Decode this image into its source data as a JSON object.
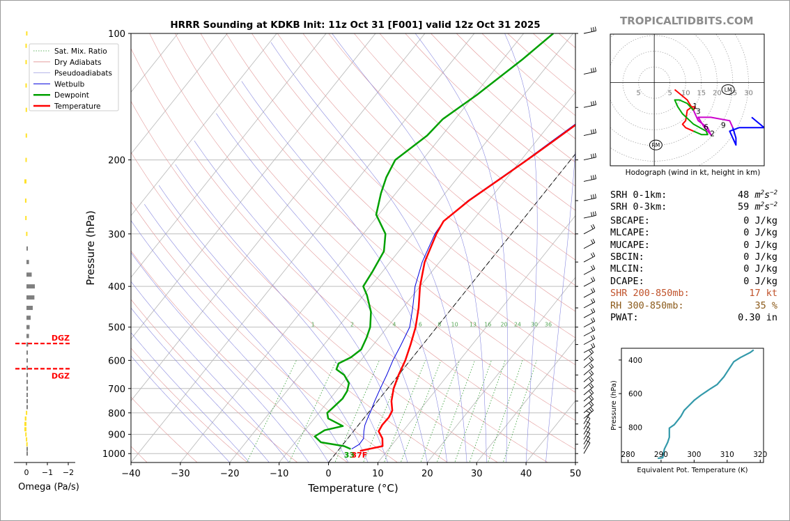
{
  "brand": "TROPICALTIDBITS.COM",
  "main": {
    "title": "HRRR Sounding at KDKB Init: 11z Oct 31 [F001] valid 12z Oct 31 2025",
    "xlabel": "Temperature (°C)",
    "ylabel": "Pressure (hPa)",
    "sfc_dewpoint_label": "33",
    "sfc_temp_label": "37F",
    "legend": [
      "Sat. Mix. Ratio",
      "Dry Adiabats",
      "Pseudoadiabats",
      "Wetbulb",
      "Dewpoint",
      "Temperature"
    ],
    "mixing_ratio_labels": [
      "1",
      "2",
      "4",
      "6",
      "8",
      "10",
      "13",
      "16",
      "20",
      "24",
      "30",
      "36"
    ]
  },
  "omega": {
    "xlabel": "Omega (Pa/s)",
    "dgz_label": "DGZ",
    "ticks": [
      "0",
      "−1",
      "−2"
    ]
  },
  "hodograph": {
    "caption": "Hodograph (wind in kt, height in km)",
    "ring_labels": [
      "5",
      "5",
      "10",
      "15",
      "20",
      "25",
      "30"
    ],
    "storm_markers": [
      "LM",
      "RM"
    ],
    "height_labels": [
      "1",
      "3",
      "6",
      "2",
      "9"
    ]
  },
  "theta_e": {
    "xlabel": "Equivalent Pot. Temperature (K)",
    "ylabel": "Pressure (hPa)"
  },
  "indices": [
    {
      "label": "SRH 0-1km:",
      "value": "48",
      "unit": "m2s-2",
      "color": "#000000"
    },
    {
      "label": "SRH 0-3km:",
      "value": "59",
      "unit": "m2s-2",
      "color": "#000000"
    },
    {
      "label": "SBCAPE:",
      "value": "0 J/kg",
      "unit": "",
      "color": "#000000"
    },
    {
      "label": "MLCAPE:",
      "value": "0 J/kg",
      "unit": "",
      "color": "#000000"
    },
    {
      "label": "MUCAPE:",
      "value": "0 J/kg",
      "unit": "",
      "color": "#000000"
    },
    {
      "label": "SBCIN:",
      "value": "0 J/kg",
      "unit": "",
      "color": "#000000"
    },
    {
      "label": "MLCIN:",
      "value": "0 J/kg",
      "unit": "",
      "color": "#000000"
    },
    {
      "label": "DCAPE:",
      "value": "0 J/kg",
      "unit": "",
      "color": "#000000"
    },
    {
      "label": "SHR 200-850mb:",
      "value": "17 kt",
      "unit": "",
      "color": "#c0522a"
    },
    {
      "label": "RH 300-850mb:",
      "value": "35 %",
      "unit": "",
      "color": "#8b5a1a"
    },
    {
      "label": "PWAT:",
      "value": "0.30 in",
      "unit": "",
      "color": "#000000"
    }
  ],
  "chart_data": [
    {
      "type": "line",
      "title": "HRRR Sounding at KDKB Init: 11z Oct 31 [F001] valid 12z Oct 31 2025",
      "xlabel": "Temperature (°C)",
      "ylabel": "Pressure (hPa)",
      "xlim": [
        -40,
        50
      ],
      "ylim": [
        1050,
        100
      ],
      "y_scale": "log",
      "x_ticks": [
        -40,
        -30,
        -20,
        -10,
        0,
        10,
        20,
        30,
        40,
        50
      ],
      "y_ticks": [
        100,
        200,
        300,
        400,
        500,
        600,
        700,
        800,
        900,
        1000
      ],
      "legend_position": "top-left",
      "series": [
        {
          "name": "Temperature",
          "color": "#ff0000",
          "points": [
            [
              4.5,
              985
            ],
            [
              8.3,
              960
            ],
            [
              7,
              920
            ],
            [
              5.1,
              885
            ],
            [
              4.8,
              855
            ],
            [
              4.9,
              820
            ],
            [
              4.5,
              790
            ],
            [
              2.8,
              750
            ],
            [
              1.2,
              700
            ],
            [
              0,
              650
            ],
            [
              -1,
              600
            ],
            [
              -2.5,
              550
            ],
            [
              -4.3,
              500
            ],
            [
              -6.8,
              450
            ],
            [
              -10,
              400
            ],
            [
              -13,
              350
            ],
            [
              -15.2,
              300
            ],
            [
              -15.8,
              280
            ],
            [
              -14,
              250
            ],
            [
              -11,
              220
            ],
            [
              -8.8,
              200
            ],
            [
              -6.5,
              180
            ],
            [
              -4,
              160
            ],
            [
              -1.5,
              140
            ],
            [
              1,
              120
            ],
            [
              3.2,
              105
            ],
            [
              4,
              100
            ]
          ]
        },
        {
          "name": "Dewpoint",
          "color": "#00a000",
          "points": [
            [
              2.3,
              975
            ],
            [
              0.5,
              960
            ],
            [
              -4.8,
              940
            ],
            [
              -7,
              910
            ],
            [
              -6,
              880
            ],
            [
              -3,
              860
            ],
            [
              -7.2,
              825
            ],
            [
              -8.3,
              800
            ],
            [
              -8,
              780
            ],
            [
              -7.5,
              740
            ],
            [
              -7.8,
              710
            ],
            [
              -8.7,
              680
            ],
            [
              -11,
              650
            ],
            [
              -13.5,
              630
            ],
            [
              -14,
              610
            ],
            [
              -12.5,
              590
            ],
            [
              -11.7,
              565
            ],
            [
              -12.5,
              530
            ],
            [
              -13.5,
              500
            ],
            [
              -15.8,
              460
            ],
            [
              -19.3,
              420
            ],
            [
              -21.5,
              400
            ],
            [
              -22,
              370
            ],
            [
              -23,
              330
            ],
            [
              -25.5,
              300
            ],
            [
              -30.5,
              270
            ],
            [
              -33,
              240
            ],
            [
              -34.5,
              220
            ],
            [
              -35.5,
              200
            ],
            [
              -33,
              175
            ],
            [
              -32.5,
              160
            ],
            [
              -29.5,
              140
            ],
            [
              -26,
              115
            ],
            [
              -24,
              100
            ]
          ]
        },
        {
          "name": "Wetbulb",
          "color": "#0000dd",
          "points": [
            [
              2.5,
              975
            ],
            [
              3.3,
              950
            ],
            [
              3.2,
              920
            ],
            [
              2.1,
              885
            ],
            [
              1.3,
              855
            ],
            [
              0.6,
              815
            ],
            [
              0.2,
              790
            ],
            [
              -0.6,
              750
            ],
            [
              -1.5,
              700
            ],
            [
              -2.4,
              650
            ],
            [
              -3.5,
              600
            ],
            [
              -4.3,
              555
            ],
            [
              -5.5,
              500
            ],
            [
              -8,
              450
            ],
            [
              -11,
              400
            ],
            [
              -13.5,
              350
            ],
            [
              -15.5,
              300
            ],
            [
              -15.8,
              280
            ],
            [
              -14.2,
              250
            ],
            [
              -11.2,
              220
            ],
            [
              -9,
              200
            ],
            [
              -6.8,
              180
            ],
            [
              -4.3,
              160
            ],
            [
              -1.8,
              140
            ],
            [
              0.5,
              120
            ],
            [
              2.7,
              105
            ],
            [
              3.5,
              100
            ]
          ]
        }
      ]
    },
    {
      "type": "bar",
      "title": "",
      "xlabel": "Omega (Pa/s)",
      "xlim": [
        0.3,
        -2
      ],
      "x_ticks": [
        0,
        -1,
        -2
      ],
      "dgz_layers_hPa": [
        547,
        628
      ],
      "levels_hPa": [
        100,
        107,
        117,
        133,
        152,
        175,
        200,
        225,
        250,
        275,
        300,
        325,
        350,
        375,
        400,
        425,
        450,
        475,
        500,
        525,
        550,
        575,
        600,
        625,
        650,
        675,
        700,
        725,
        750,
        775,
        800,
        825,
        850,
        875,
        900,
        925,
        950,
        975,
        1000
      ],
      "omega_Pa_s": [
        0.02,
        0.05,
        0.05,
        0.05,
        0.04,
        0.04,
        0.05,
        0.1,
        0.07,
        0.06,
        0.02,
        -0.02,
        -0.12,
        -0.25,
        -0.4,
        -0.38,
        -0.3,
        -0.2,
        -0.15,
        -0.12,
        -0.08,
        -0.04,
        -0.02,
        -0.03,
        -0.04,
        -0.05,
        -0.07,
        -0.06,
        -0.04,
        -0.02,
        0.03,
        0.08,
        0.1,
        0.1,
        0.06,
        0.03,
        0.01,
        -0.02,
        -0.01
      ]
    },
    {
      "type": "line",
      "title": "Hodograph (wind in kt, height in km)",
      "xlim": [
        -14,
        35
      ],
      "ylim": [
        -24,
        14
      ],
      "rings_kt": [
        5,
        10,
        15,
        20,
        25,
        30
      ],
      "storm_motion_kt": {
        "LM": [
          23.5,
          -2
        ],
        "RM": [
          0.5,
          -18
        ]
      },
      "series": [
        {
          "name": "0-1 km",
          "color": "#ff0000",
          "points": [
            [
              6.5,
              -2
            ],
            [
              10.5,
              -5
            ],
            [
              12.5,
              -8
            ],
            [
              13,
              -7
            ],
            [
              12,
              -7
            ],
            [
              10.5,
              -8
            ],
            [
              10,
              -11
            ],
            [
              9,
              -12
            ],
            [
              10,
              -13
            ],
            [
              12.5,
              -14
            ]
          ]
        },
        {
          "name": "1-3 km",
          "color": "#00aa00",
          "points": [
            [
              12.5,
              -14
            ],
            [
              15,
              -15
            ],
            [
              17,
              -15
            ],
            [
              16.5,
              -14
            ],
            [
              12.5,
              -12
            ],
            [
              9,
              -9
            ],
            [
              7.5,
              -7
            ],
            [
              6.5,
              -5
            ],
            [
              8,
              -5
            ],
            [
              10.5,
              -6
            ],
            [
              12.5,
              -8
            ]
          ]
        },
        {
          "name": "3-6 km",
          "color": "#cc00cc",
          "points": [
            [
              12.5,
              -8
            ],
            [
              14,
              -11
            ],
            [
              17,
              -13
            ],
            [
              18,
              -15
            ],
            [
              16,
              -13
            ],
            [
              14,
              -10
            ],
            [
              18,
              -10
            ],
            [
              24,
              -11
            ],
            [
              25,
              -13
            ]
          ]
        },
        {
          "name": "6-9 km",
          "color": "#0000ff",
          "points": [
            [
              25,
              -13
            ],
            [
              26,
              -16
            ],
            [
              26,
              -18
            ],
            [
              24,
              -14
            ],
            [
              27,
              -13
            ],
            [
              35,
              -13
            ],
            [
              31,
              -10
            ]
          ]
        }
      ]
    },
    {
      "type": "line",
      "title": "",
      "xlabel": "Equivalent Pot. Temperature (K)",
      "ylabel": "Pressure (hPa)",
      "xlim": [
        278,
        321
      ],
      "ylim": [
        1010,
        330
      ],
      "x_ticks": [
        280,
        290,
        300,
        310,
        320
      ],
      "y_ticks": [
        400,
        600,
        800
      ],
      "series": [
        {
          "name": "",
          "color": "#3399aa",
          "points": [
            [
              289,
              985
            ],
            [
              290.5,
              982
            ],
            [
              290.7,
              960
            ],
            [
              291,
              930
            ],
            [
              292,
              890
            ],
            [
              292.5,
              860
            ],
            [
              292.5,
              805
            ],
            [
              294,
              785
            ],
            [
              295,
              760
            ],
            [
              296,
              735
            ],
            [
              297,
              700
            ],
            [
              298,
              680
            ],
            [
              300,
              640
            ],
            [
              302,
              610
            ],
            [
              305,
              570
            ],
            [
              307,
              545
            ],
            [
              309,
              500
            ],
            [
              310,
              470
            ],
            [
              311,
              440
            ],
            [
              312,
              410
            ],
            [
              314,
              385
            ],
            [
              317,
              355
            ],
            [
              318,
              340
            ]
          ]
        }
      ]
    }
  ]
}
